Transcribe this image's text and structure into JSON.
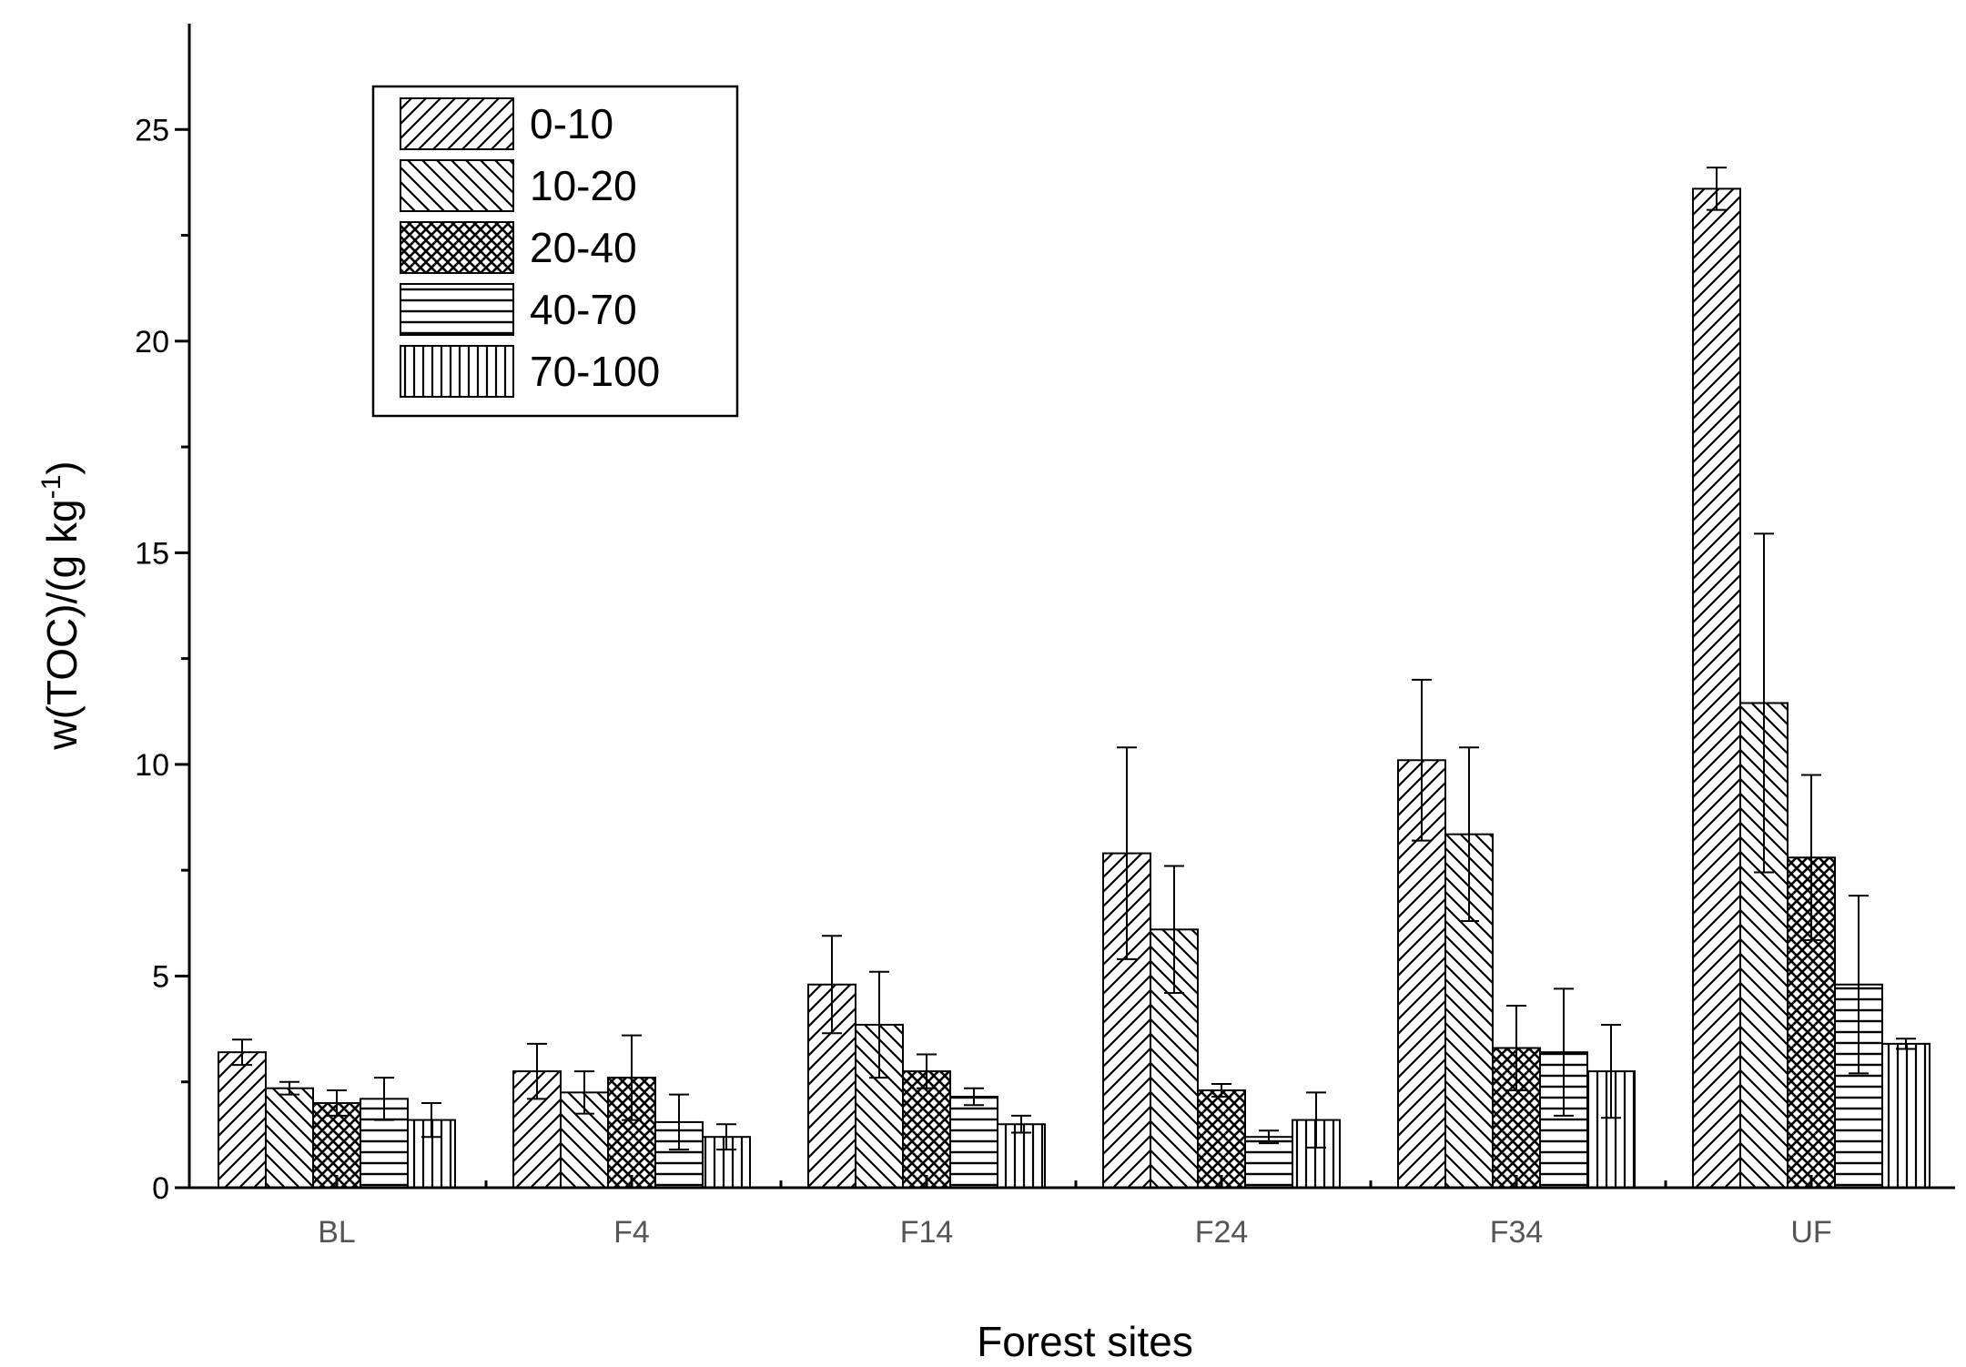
{
  "chart_data": {
    "type": "bar",
    "categories": [
      "BL",
      "F4",
      "F14",
      "F24",
      "F34",
      "UF"
    ],
    "xlabel": "Forest sites",
    "ylabel": "w(TOC)/(g kg",
    "ylabel_sup": "-1",
    "ylabel_close": ")",
    "ylim": [
      0,
      27.5
    ],
    "yticks": [
      0,
      5,
      10,
      15,
      20,
      25
    ],
    "grid": false,
    "legend": "top-left",
    "series": [
      {
        "name": "0-10",
        "pattern": "diag-right",
        "values": [
          3.2,
          2.75,
          4.8,
          7.9,
          10.1,
          23.6
        ],
        "errors": [
          0.3,
          0.65,
          1.15,
          2.5,
          1.9,
          0.5
        ]
      },
      {
        "name": "10-20",
        "pattern": "diag-left",
        "values": [
          2.35,
          2.25,
          3.85,
          6.1,
          8.35,
          11.45
        ],
        "errors": [
          0.15,
          0.5,
          1.25,
          1.5,
          2.05,
          4.0
        ]
      },
      {
        "name": "20-40",
        "pattern": "cross",
        "values": [
          2.0,
          2.6,
          2.75,
          2.3,
          3.3,
          7.8
        ],
        "errors": [
          0.3,
          1.0,
          0.4,
          0.15,
          1.0,
          1.95
        ]
      },
      {
        "name": "40-70",
        "pattern": "horizontal",
        "values": [
          2.1,
          1.55,
          2.15,
          1.2,
          3.2,
          4.8
        ],
        "errors": [
          0.5,
          0.65,
          0.2,
          0.15,
          1.5,
          2.1
        ]
      },
      {
        "name": "70-100",
        "pattern": "vertical",
        "values": [
          1.6,
          1.2,
          1.5,
          1.6,
          2.75,
          3.4
        ],
        "errors": [
          0.4,
          0.3,
          0.2,
          0.65,
          1.1,
          0.12
        ]
      }
    ]
  }
}
